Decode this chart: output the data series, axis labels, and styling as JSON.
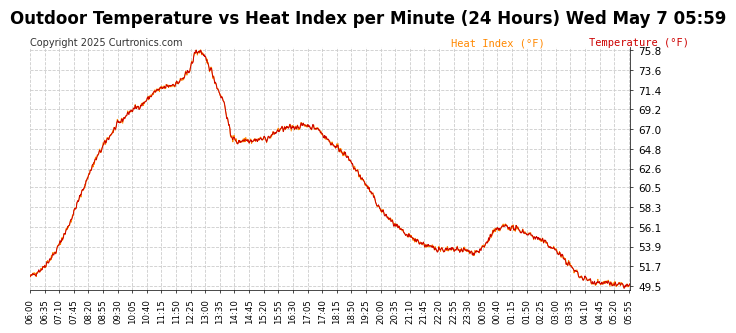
{
  "title": "Outdoor Temperature vs Heat Index per Minute (24 Hours) Wed May 7 05:59",
  "copyright": "Copyright 2025 Curtronics.com",
  "legend_heat": "Heat Index (°F)",
  "legend_temp": "Temperature (°F)",
  "legend_heat_color": "#ff8800",
  "legend_temp_color": "#cc0000",
  "line_color": "#cc0000",
  "background_color": "#ffffff",
  "yticks": [
    49.5,
    51.7,
    53.9,
    56.1,
    58.3,
    60.5,
    62.6,
    64.8,
    67.0,
    69.2,
    71.4,
    73.6,
    75.8
  ],
  "ylim_min": 49.0,
  "ylim_max": 76.2,
  "title_fontsize": 12,
  "copyright_fontsize": 7,
  "grid_color": "#cccccc",
  "grid_style": "--",
  "tick_interval": 35,
  "n_points": 1440,
  "start_hour": 6,
  "curve_x": [
    0,
    30,
    60,
    90,
    120,
    150,
    180,
    210,
    240,
    270,
    300,
    330,
    355,
    370,
    380,
    390,
    395,
    410,
    420,
    435,
    450,
    465,
    480,
    495,
    510,
    540,
    570,
    600,
    630,
    660,
    690,
    720,
    750,
    780,
    810,
    840,
    870,
    900,
    930,
    960,
    1000,
    1040,
    1060,
    1080,
    1090,
    1110,
    1140,
    1170,
    1200,
    1230,
    1260,
    1290,
    1320,
    1350,
    1380,
    1410,
    1439
  ],
  "curve_y": [
    50.5,
    51.5,
    53.2,
    56.0,
    59.5,
    63.0,
    65.5,
    67.5,
    69.0,
    69.8,
    71.2,
    71.8,
    72.2,
    72.8,
    73.5,
    74.5,
    75.6,
    75.7,
    74.8,
    73.5,
    71.5,
    70.0,
    66.5,
    65.5,
    65.8,
    65.8,
    66.0,
    67.0,
    67.2,
    67.5,
    67.0,
    65.5,
    64.5,
    62.5,
    60.5,
    58.0,
    56.5,
    55.2,
    54.5,
    53.8,
    53.5,
    53.5,
    53.2,
    53.5,
    54.0,
    55.5,
    56.2,
    55.8,
    55.2,
    54.5,
    53.5,
    52.0,
    50.5,
    50.0,
    49.8,
    49.6,
    49.5
  ]
}
